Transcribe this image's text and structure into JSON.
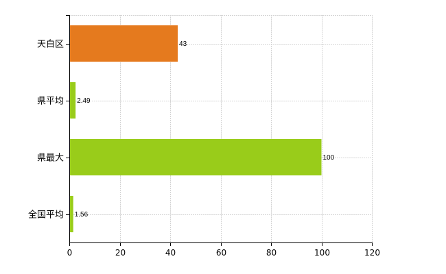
{
  "chart_data": {
    "type": "bar",
    "orientation": "horizontal",
    "categories": [
      "天白区",
      "県平均",
      "県最大",
      "全国平均"
    ],
    "values": [
      43,
      2.49,
      100,
      1.56
    ],
    "value_labels": [
      "43",
      "2.49",
      "100",
      "1.56"
    ],
    "bar_colors": [
      "#e57a1e",
      "#99cc1a",
      "#99cc1a",
      "#99cc1a"
    ],
    "xlim": [
      0,
      120
    ],
    "x_ticks": [
      0,
      20,
      40,
      60,
      80,
      100,
      120
    ],
    "x_tick_labels": [
      "0",
      "20",
      "40",
      "60",
      "80",
      "100",
      "120"
    ],
    "grid": true,
    "title": "",
    "xlabel": "",
    "ylabel": ""
  }
}
